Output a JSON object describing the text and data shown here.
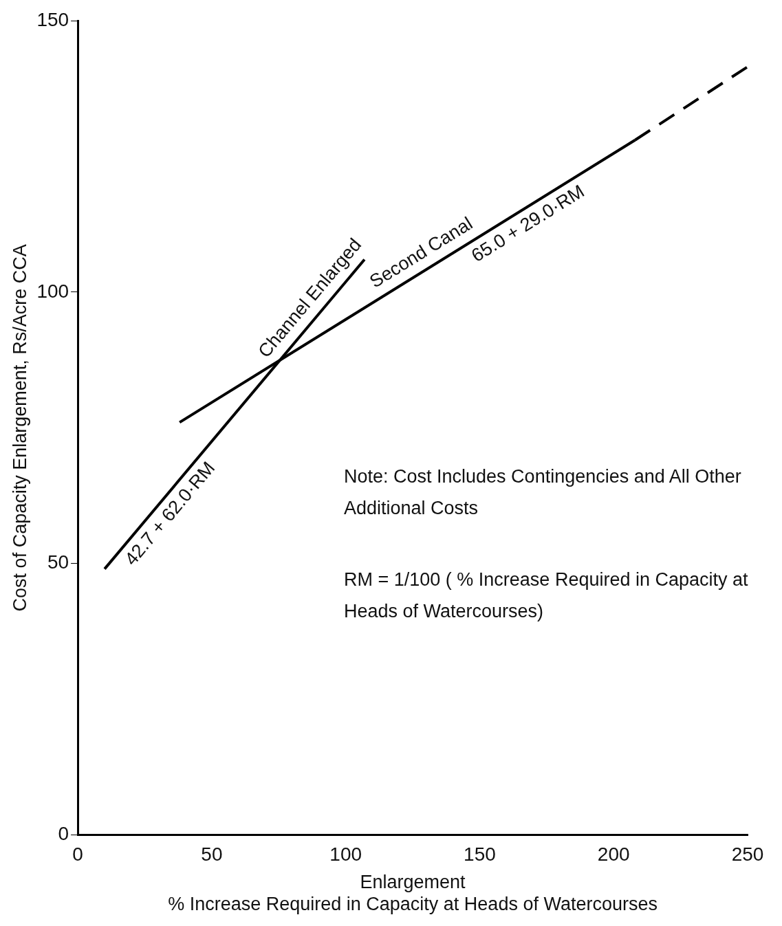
{
  "chart_data": {
    "type": "line",
    "xlabel": "Enlargement\n% Increase Required in Capacity at Heads of Watercourses",
    "ylabel": "Cost of Capacity Enlargement, Rs/Acre CCA",
    "series": [
      {
        "name": "Channel Enlarged",
        "color": "#000000",
        "x": [
          10,
          107
        ],
        "values": [
          49,
          106
        ],
        "line_style": "solid"
      },
      {
        "name": "Second Canal",
        "color": "#000000",
        "x": [
          38,
          208
        ],
        "values": [
          76,
          128
        ],
        "line_style": "solid"
      },
      {
        "color": "#000000",
        "x": [
          208,
          250
        ],
        "values": [
          128,
          141.5
        ],
        "line_style": "dashed"
      }
    ],
    "xlim": [
      0,
      250
    ],
    "xticks": [
      0,
      50,
      100,
      150,
      200,
      250
    ],
    "ylim": [
      0,
      150
    ],
    "yticks": [
      0,
      50,
      100,
      150
    ],
    "grid": false,
    "legend": false,
    "marker": "none",
    "annotations": [
      {
        "text": "42.7 + 62.0·RM",
        "x": 30,
        "y": 61
      },
      {
        "text": "65.0 + 29.0·RM",
        "x": 165,
        "y": 115
      },
      "Note:  Cost Includes Contingencies and All Other Additional Costs",
      "RM = 1/100 ( % Increase Required in Capacity at Heads of Watercourses)"
    ]
  }
}
